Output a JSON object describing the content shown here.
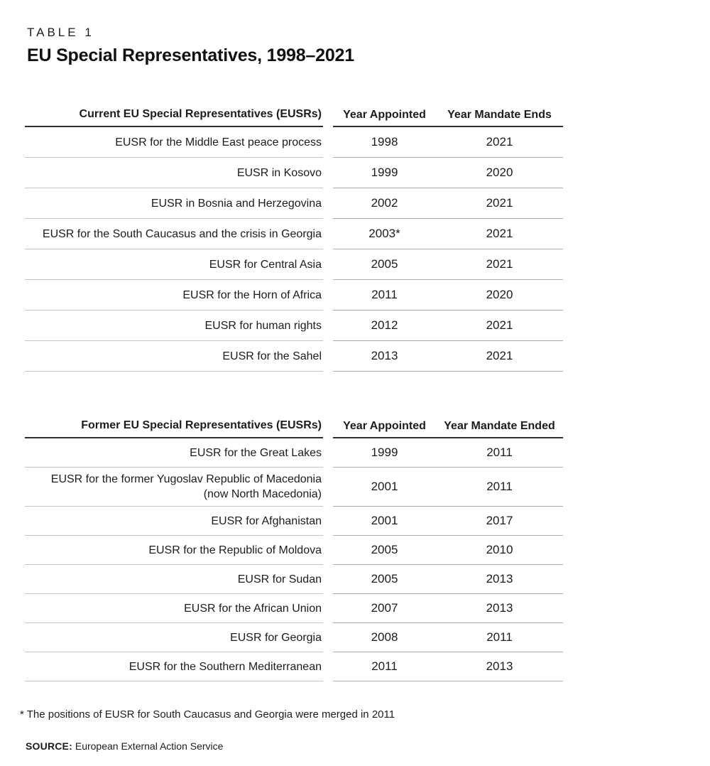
{
  "page": {
    "table_label": "TABLE 1",
    "title": "EU Special Representatives, 1998–2021",
    "footnote": "* The positions of EUSR for South Caucasus and Georgia were merged in 2011",
    "source_label": "SOURCE:",
    "source_text": "European External Action Service"
  },
  "current_table": {
    "headers": {
      "name": "Current EU Special Representatives (EUSRs)",
      "appointed": "Year Appointed",
      "ends": "Year Mandate Ends"
    },
    "rows": [
      {
        "name": "EUSR for the Middle East peace process",
        "appointed": "1998",
        "ends": "2021"
      },
      {
        "name": "EUSR in Kosovo",
        "appointed": "1999",
        "ends": "2020"
      },
      {
        "name": "EUSR in Bosnia and Herzegovina",
        "appointed": "2002",
        "ends": "2021"
      },
      {
        "name": "EUSR for the South Caucasus and the crisis in Georgia",
        "appointed": "2003*",
        "ends": "2021"
      },
      {
        "name": "EUSR for Central Asia",
        "appointed": "2005",
        "ends": "2021"
      },
      {
        "name": "EUSR for the Horn of Africa",
        "appointed": "2011",
        "ends": "2020"
      },
      {
        "name": "EUSR for human rights",
        "appointed": "2012",
        "ends": "2021"
      },
      {
        "name": "EUSR for the Sahel",
        "appointed": "2013",
        "ends": "2021"
      }
    ]
  },
  "former_table": {
    "headers": {
      "name": "Former EU Special Representatives (EUSRs)",
      "appointed": "Year Appointed",
      "ends": "Year Mandate Ended"
    },
    "rows": [
      {
        "name": "EUSR for the Great Lakes",
        "appointed": "1999",
        "ends": "2011"
      },
      {
        "name": "EUSR for the former Yugoslav Republic of Macedonia (now North Macedonia)",
        "appointed": "2001",
        "ends": "2011"
      },
      {
        "name": "EUSR for Afghanistan",
        "appointed": "2001",
        "ends": "2017"
      },
      {
        "name": "EUSR for the Republic of Moldova",
        "appointed": "2005",
        "ends": "2010"
      },
      {
        "name": "EUSR for Sudan",
        "appointed": "2005",
        "ends": "2013"
      },
      {
        "name": "EUSR for the African Union",
        "appointed": "2007",
        "ends": "2013"
      },
      {
        "name": "EUSR for Georgia",
        "appointed": "2008",
        "ends": "2011"
      },
      {
        "name": "EUSR for the Southern Mediterranean",
        "appointed": "2011",
        "ends": "2013"
      }
    ]
  }
}
